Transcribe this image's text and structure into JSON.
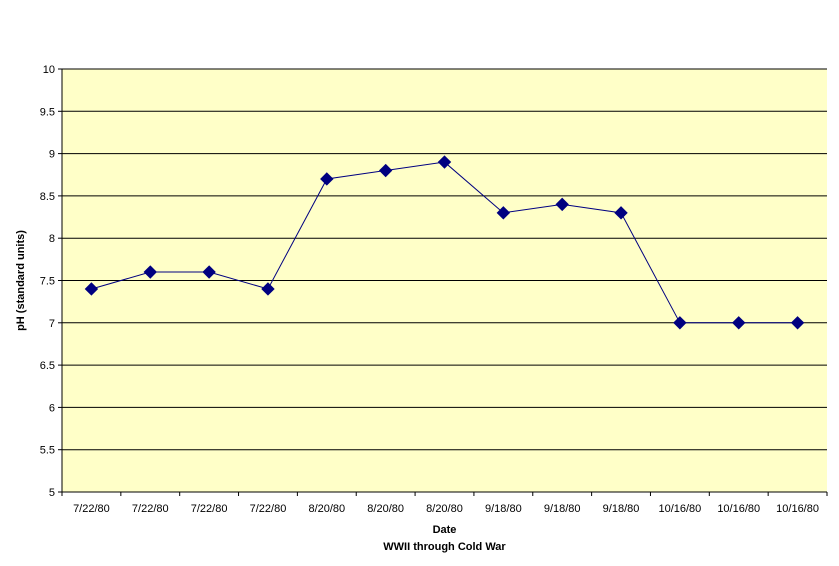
{
  "chart_data": {
    "type": "line",
    "title": "",
    "xlabel": "Date",
    "xlabel_sub": "WWII through Cold War",
    "ylabel": "pH (standard units)",
    "ylim": [
      5,
      10
    ],
    "yticks": [
      5,
      5.5,
      6,
      6.5,
      7,
      7.5,
      8,
      8.5,
      9,
      9.5,
      10
    ],
    "ytick_labels": [
      "5",
      "5.5",
      "6",
      "6.5",
      "7",
      "7.5",
      "8",
      "8.5",
      "9",
      "9.5",
      "10"
    ],
    "grid": true,
    "legend": "none",
    "categories": [
      "7/22/80",
      "7/22/80",
      "7/22/80",
      "7/22/80",
      "8/20/80",
      "8/20/80",
      "8/20/80",
      "9/18/80",
      "9/18/80",
      "9/18/80",
      "10/16/80",
      "10/16/80",
      "10/16/80"
    ],
    "series": [
      {
        "values": [
          7.4,
          7.6,
          7.6,
          7.4,
          8.7,
          8.8,
          8.9,
          8.3,
          8.4,
          8.3,
          7.0,
          7.0,
          7.0
        ],
        "color": "#000080",
        "marker": "diamond"
      }
    ],
    "plot_background": "#ffffc8"
  }
}
